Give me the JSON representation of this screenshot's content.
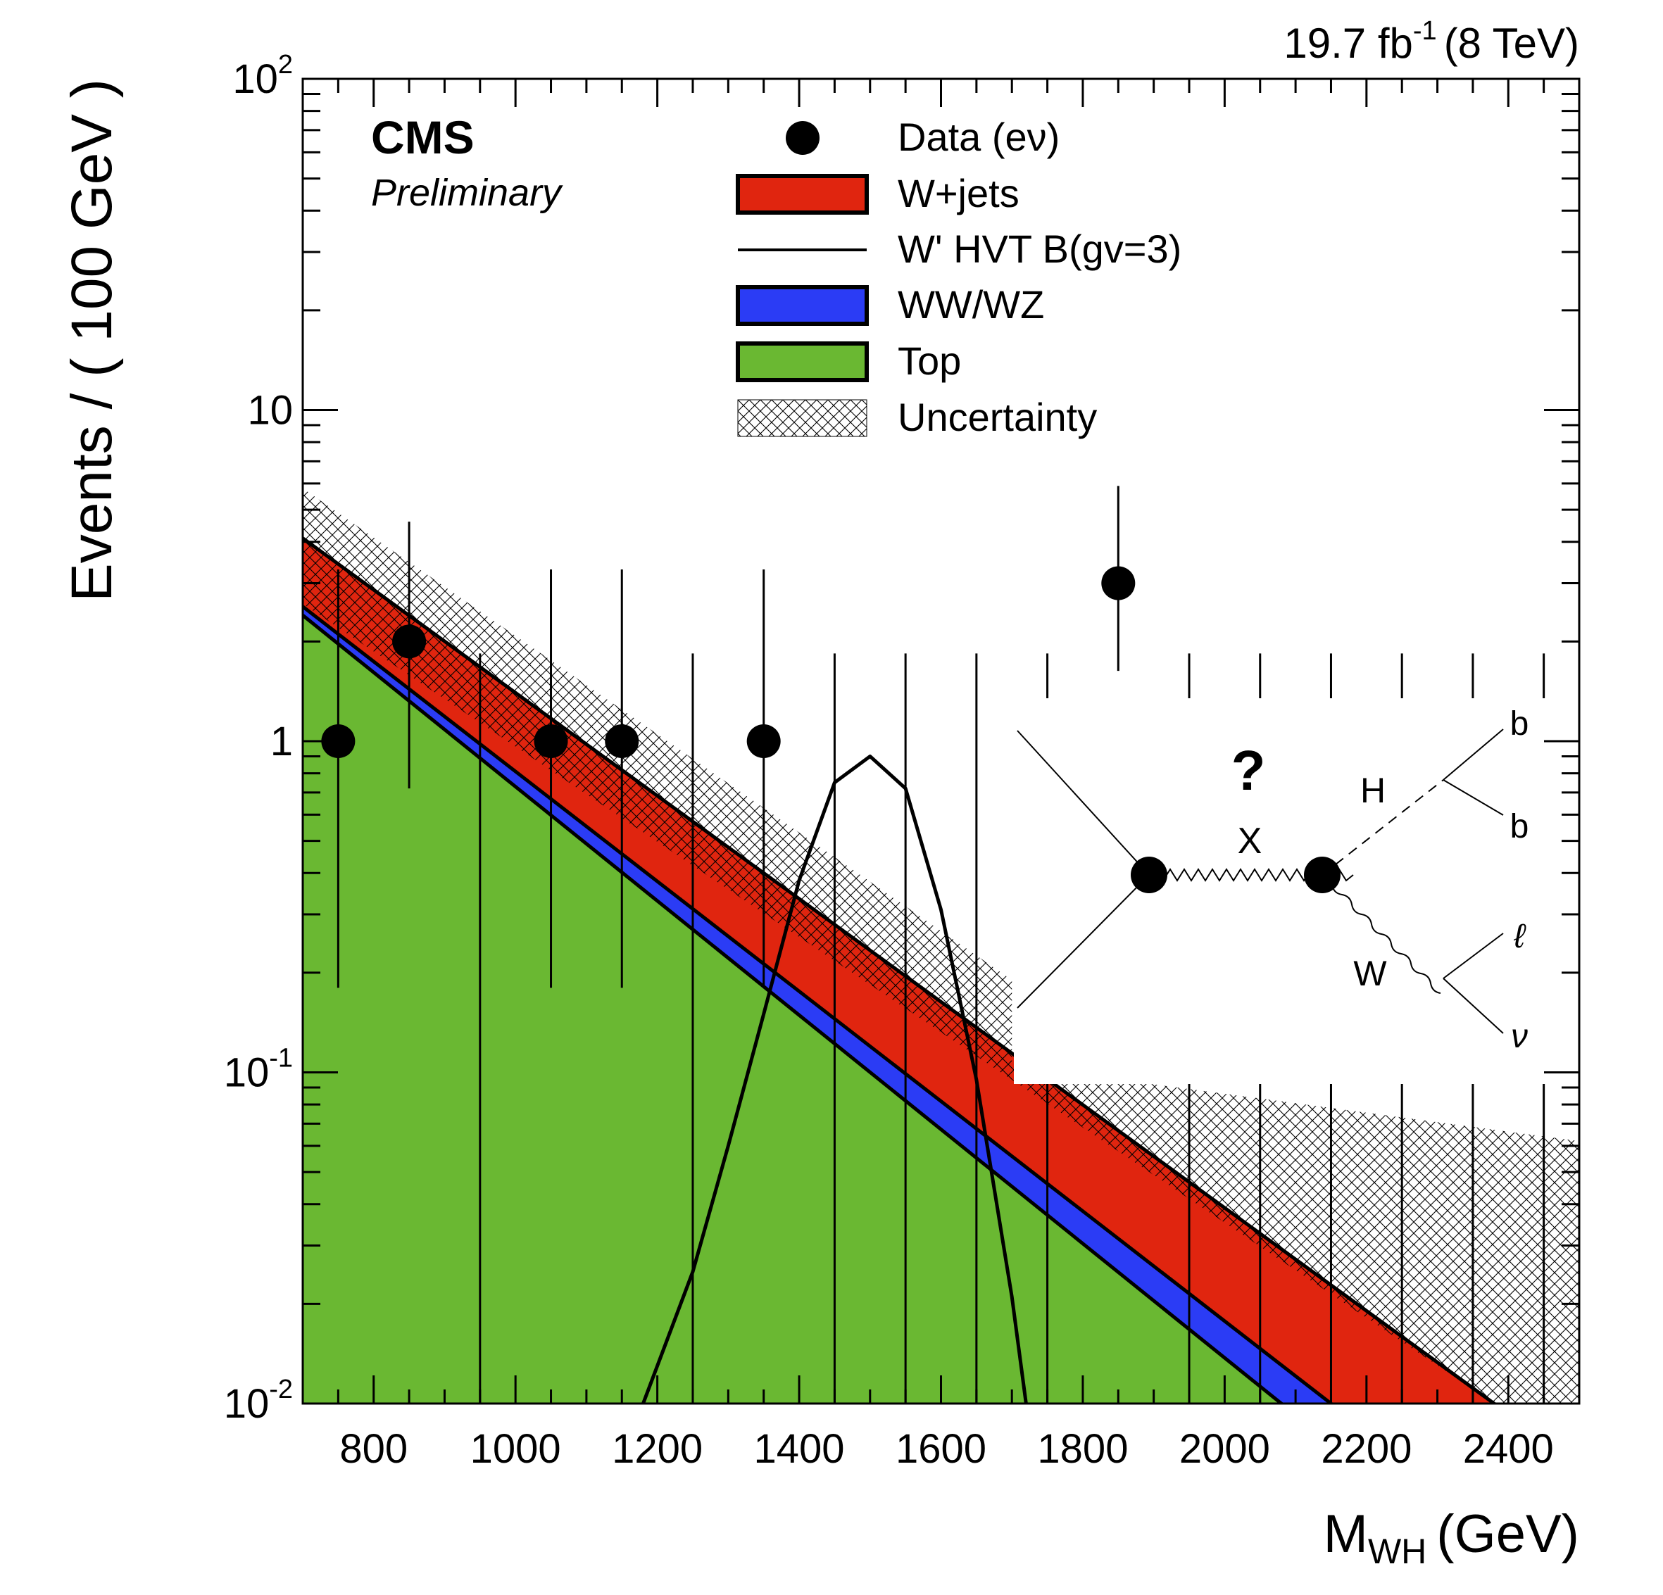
{
  "chart_data": {
    "type": "histogram",
    "lumi_label": "19.7 fb",
    "lumi_exponent": "-1",
    "lumi_energy": "(8 TeV)",
    "experiment": "CMS",
    "status": "Preliminary",
    "ylabel": "Events / ( 100 GeV )",
    "xlabel_main": "M",
    "xlabel_sub": "WH",
    "xlabel_unit": "(GeV)",
    "x_range": [
      700,
      2500
    ],
    "y_range": [
      0.01,
      100
    ],
    "y_scale": "log",
    "x_tick_labels": [
      "800",
      "1000",
      "1200",
      "1400",
      "1600",
      "1800",
      "2000",
      "2200",
      "2400"
    ],
    "x_tick_values": [
      800,
      1000,
      1200,
      1400,
      1600,
      1800,
      2000,
      2200,
      2400
    ],
    "y_tick_labels": [
      {
        "base": "10",
        "exp": "2",
        "value": 100
      },
      {
        "base": "10",
        "exp": "",
        "value": 10
      },
      {
        "base": "1",
        "exp": "",
        "value": 1
      },
      {
        "base": "10",
        "exp": "-1",
        "value": 0.1
      },
      {
        "base": "10",
        "exp": "-2",
        "value": 0.01
      }
    ],
    "legend": [
      {
        "key": "data",
        "label": "Data (eν)"
      },
      {
        "key": "wjets",
        "label": "W+jets",
        "color": "#e0250f"
      },
      {
        "key": "signal",
        "label": "W' HVT B(gv=3)"
      },
      {
        "key": "diboson",
        "label": "WW/WZ",
        "color": "#2b3cf5"
      },
      {
        "key": "top",
        "label": "Top",
        "color": "#6ab832"
      },
      {
        "key": "unc",
        "label": "Uncertainty"
      }
    ],
    "colors": {
      "wjets": "#e0250f",
      "diboson": "#2b3cf5",
      "top": "#6ab832",
      "data": "#000000"
    },
    "data_points": [
      {
        "x": 750,
        "y": 1,
        "ylo": 0.18,
        "yhi": 3.3
      },
      {
        "x": 850,
        "y": 2,
        "ylo": 0.72,
        "yhi": 4.6
      },
      {
        "x": 950,
        "y": 0,
        "ylo": 0.01,
        "yhi": 1.84
      },
      {
        "x": 1050,
        "y": 1,
        "ylo": 0.18,
        "yhi": 3.3
      },
      {
        "x": 1150,
        "y": 1,
        "ylo": 0.18,
        "yhi": 3.3
      },
      {
        "x": 1250,
        "y": 0,
        "ylo": 0.01,
        "yhi": 1.84
      },
      {
        "x": 1350,
        "y": 1,
        "ylo": 0.18,
        "yhi": 3.3
      },
      {
        "x": 1450,
        "y": 0,
        "ylo": 0.01,
        "yhi": 1.84
      },
      {
        "x": 1550,
        "y": 0,
        "ylo": 0.01,
        "yhi": 1.84
      },
      {
        "x": 1650,
        "y": 0,
        "ylo": 0.01,
        "yhi": 1.84
      },
      {
        "x": 1750,
        "y": 0,
        "ylo": 0.01,
        "yhi": 1.84
      },
      {
        "x": 1850,
        "y": 3,
        "ylo": 1.63,
        "yhi": 5.9
      },
      {
        "x": 1950,
        "y": 0,
        "ylo": 0.01,
        "yhi": 1.84
      },
      {
        "x": 2050,
        "y": 0,
        "ylo": 0.01,
        "yhi": 1.84
      },
      {
        "x": 2150,
        "y": 0,
        "ylo": 0.01,
        "yhi": 1.84
      },
      {
        "x": 2250,
        "y": 0,
        "ylo": 0.01,
        "yhi": 1.84
      },
      {
        "x": 2350,
        "y": 0,
        "ylo": 0.01,
        "yhi": 1.84
      },
      {
        "x": 2450,
        "y": 0,
        "ylo": 0.01,
        "yhi": 1.84
      }
    ],
    "top_curve": {
      "x": [
        700,
        2080
      ],
      "y": [
        2.4,
        0.01
      ]
    },
    "diboson_curve": {
      "x": [
        700,
        2150
      ],
      "y": [
        2.55,
        0.01
      ]
    },
    "wjets_curve": {
      "x": [
        700,
        2380
      ],
      "y": [
        4.1,
        0.01
      ]
    },
    "uncertainty_band": {
      "upper": {
        "x": [
          700,
          1700,
          1700,
          2500
        ],
        "y": [
          5.8,
          0.19,
          0.105,
          0.062
        ]
      },
      "lower": {
        "x": [
          700,
          2380
        ],
        "y": [
          2.6,
          0.01
        ]
      }
    },
    "signal_curve": {
      "x": [
        1180,
        1250,
        1300,
        1350,
        1400,
        1450,
        1500,
        1550,
        1600,
        1650,
        1700,
        1720
      ],
      "y": [
        0.01,
        0.025,
        0.06,
        0.15,
        0.38,
        0.75,
        0.9,
        0.72,
        0.31,
        0.095,
        0.021,
        0.01
      ]
    }
  },
  "feynman": {
    "question_mark": "?",
    "x_label": "X",
    "h_label": "H",
    "w_label": "W",
    "b1_label": "b",
    "b2_label": "b",
    "lepton_label": "ℓ",
    "neutrino_label": "ν"
  }
}
